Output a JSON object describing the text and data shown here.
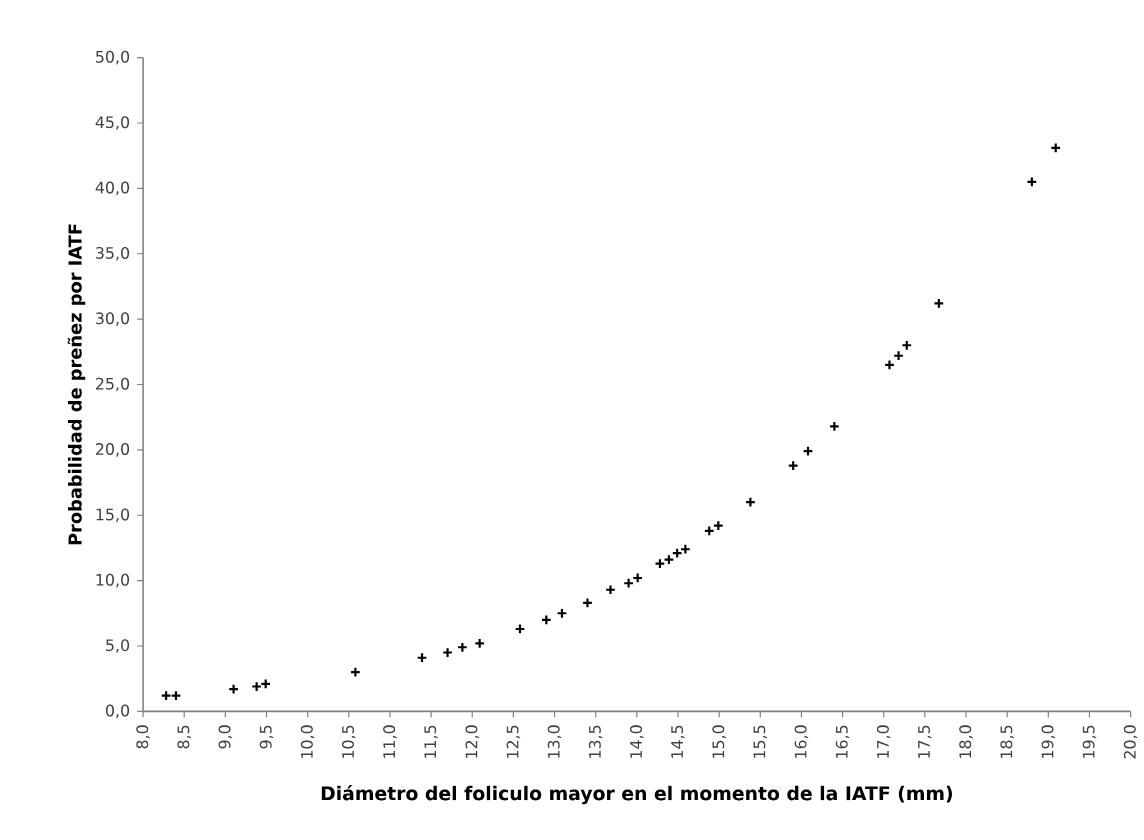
{
  "chart_data": {
    "type": "scatter",
    "xlabel": "Diámetro del foliculo mayor en el momento de la IATF (mm)",
    "ylabel": "Probabilidad de preñez por IATF",
    "x": [
      8.28,
      8.4,
      9.1,
      9.38,
      9.49,
      10.58,
      11.39,
      11.7,
      11.88,
      12.09,
      12.58,
      12.9,
      13.09,
      13.4,
      13.68,
      13.9,
      14.01,
      14.28,
      14.39,
      14.49,
      14.59,
      14.88,
      14.99,
      15.38,
      15.9,
      16.08,
      16.4,
      17.07,
      17.18,
      17.28,
      17.67,
      18.8,
      19.09
    ],
    "values": [
      1.2,
      1.2,
      1.7,
      1.9,
      2.1,
      3.0,
      4.1,
      4.5,
      4.9,
      5.2,
      6.3,
      7.0,
      7.5,
      8.3,
      9.3,
      9.8,
      10.2,
      11.3,
      11.6,
      12.1,
      12.4,
      13.8,
      14.2,
      16.0,
      18.8,
      19.9,
      21.8,
      26.5,
      27.2,
      28.0,
      31.2,
      40.5,
      43.1
    ],
    "color": "#000000",
    "marker": "cross",
    "grid": false,
    "xlim": [
      8,
      20
    ],
    "ylim": [
      0,
      50
    ],
    "xticks": [
      {
        "value": 8,
        "label": "8,0"
      },
      {
        "value": 8.5,
        "label": "8,5"
      },
      {
        "value": 9,
        "label": "9,0"
      },
      {
        "value": 9.5,
        "label": "9,5"
      },
      {
        "value": 10,
        "label": "10,0"
      },
      {
        "value": 10.5,
        "label": "10,5"
      },
      {
        "value": 11,
        "label": "11,0"
      },
      {
        "value": 11.5,
        "label": "11,5"
      },
      {
        "value": 12,
        "label": "12,0"
      },
      {
        "value": 12.5,
        "label": "12,5"
      },
      {
        "value": 13,
        "label": "13,0"
      },
      {
        "value": 13.5,
        "label": "13,5"
      },
      {
        "value": 14,
        "label": "14,0"
      },
      {
        "value": 14.5,
        "label": "14,5"
      },
      {
        "value": 15,
        "label": "15,0"
      },
      {
        "value": 15.5,
        "label": "15,5"
      },
      {
        "value": 16,
        "label": "16,0"
      },
      {
        "value": 16.5,
        "label": "16,5"
      },
      {
        "value": 17,
        "label": "17,0"
      },
      {
        "value": 17.5,
        "label": "17,5"
      },
      {
        "value": 18,
        "label": "18,0"
      },
      {
        "value": 18.5,
        "label": "18,5"
      },
      {
        "value": 19,
        "label": "19,0"
      },
      {
        "value": 19.5,
        "label": "19,5"
      },
      {
        "value": 20,
        "label": "20,0"
      }
    ],
    "yticks": [
      {
        "value": 0,
        "label": "0,0"
      },
      {
        "value": 5,
        "label": "5,0"
      },
      {
        "value": 10,
        "label": "10,0"
      },
      {
        "value": 15,
        "label": "15,0"
      },
      {
        "value": 20,
        "label": "20,0"
      },
      {
        "value": 25,
        "label": "25,0"
      },
      {
        "value": 30,
        "label": "30,0"
      },
      {
        "value": 35,
        "label": "35,0"
      },
      {
        "value": 40,
        "label": "40,0"
      },
      {
        "value": 45,
        "label": "45,0"
      },
      {
        "value": 50,
        "label": "50,0"
      }
    ]
  }
}
